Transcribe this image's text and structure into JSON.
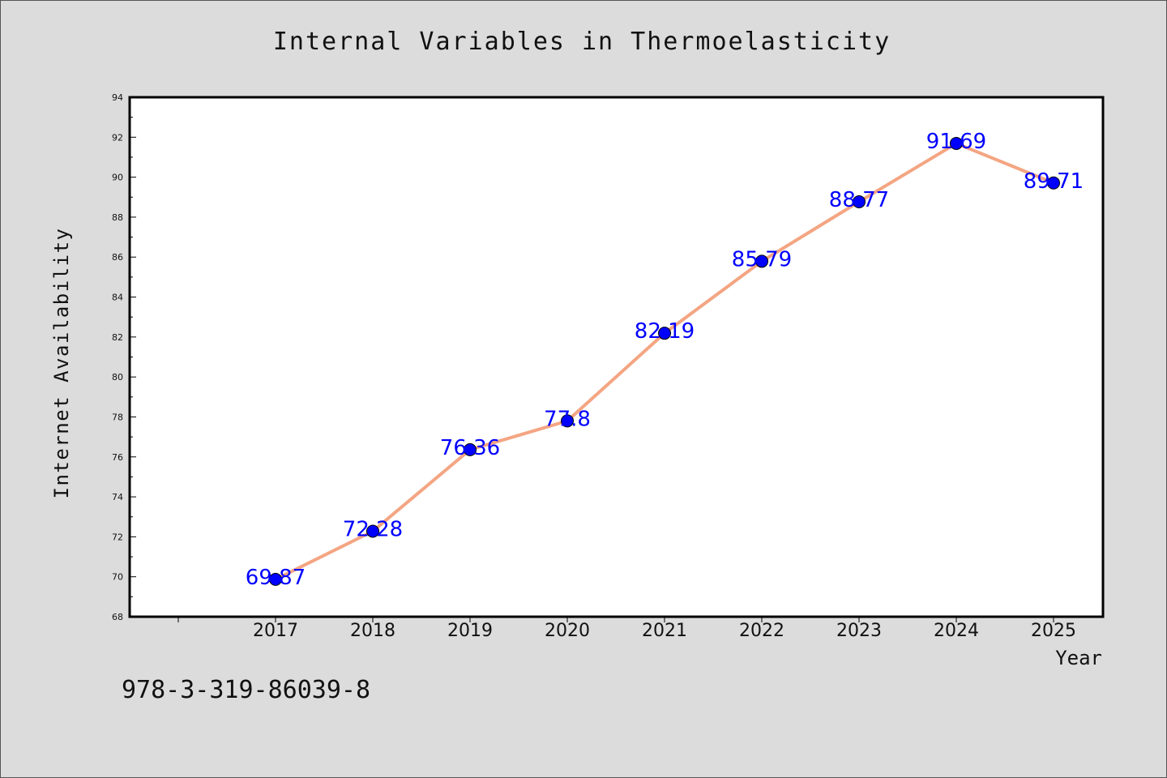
{
  "header": {
    "title": "Internal Variables in Thermoelasticity"
  },
  "footer": {
    "isbn": "978-3-319-86039-8"
  },
  "colors": {
    "background": "#dcdcdc",
    "plot_background": "#ffffff",
    "line": "#f4a582",
    "marker": "#0000ff",
    "data_label": "#0000ff"
  },
  "chart_data": {
    "type": "line",
    "title": "Internal Variables in Thermoelasticity",
    "xlabel": "Year",
    "ylabel": "Internet Availability",
    "categories": [
      "2017",
      "2018",
      "2019",
      "2020",
      "2021",
      "2022",
      "2023",
      "2024",
      "2025"
    ],
    "values": [
      69.87,
      72.28,
      76.36,
      77.8,
      82.19,
      85.79,
      88.77,
      91.69,
      89.71
    ],
    "data_labels": [
      "69.87",
      "72.28",
      "76.36",
      "77.8",
      "82.19",
      "85.79",
      "88.77",
      "91.69",
      "89.71"
    ],
    "ylim": [
      68,
      94
    ],
    "yticks": [
      "68",
      "70",
      "72",
      "74",
      "76",
      "78",
      "80",
      "82",
      "84",
      "86",
      "88",
      "90",
      "92",
      "94"
    ],
    "grid": false,
    "legend": "none",
    "marker": "circle"
  }
}
